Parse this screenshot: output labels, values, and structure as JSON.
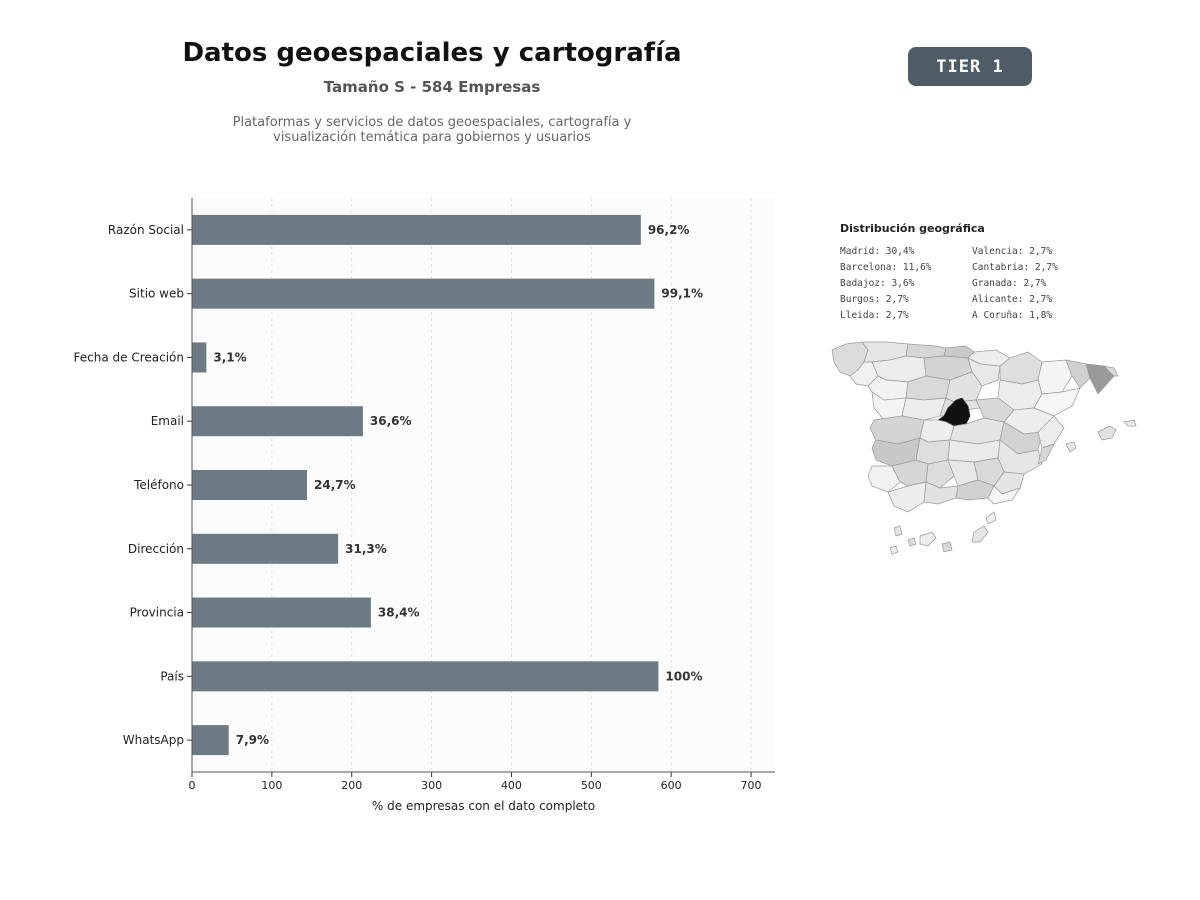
{
  "header": {
    "title": "Datos geoespaciales y cartografía",
    "subtitle": "Tamaño S - 584 Empresas",
    "description": "Plataformas y servicios de datos geoespaciales, cartografía y visualización temática para gobiernos y usuarios",
    "tier_badge": "TIER 1"
  },
  "colors": {
    "bar": "#6e7a83",
    "background": "#fcfcfc",
    "badge": "#4f5b66"
  },
  "chart_data": {
    "type": "bar",
    "orientation": "horizontal",
    "categories": [
      "Razón Social",
      "Sitio web",
      "Fecha de Creación",
      "Email",
      "Teléfono",
      "Dirección",
      "Provincia",
      "País",
      "WhatsApp"
    ],
    "values": [
      562,
      579,
      18,
      214,
      144,
      183,
      224,
      584,
      46
    ],
    "data_labels": [
      "96,2%",
      "99,1%",
      "3,1%",
      "36,6%",
      "24,7%",
      "31,3%",
      "38,4%",
      "100%",
      "7,9%"
    ],
    "xlabel": "% de empresas con el dato completo",
    "ylabel": "",
    "xlim": [
      0,
      730
    ],
    "xticks": [
      0,
      100,
      200,
      300,
      400,
      500,
      600,
      700
    ],
    "grid": "vertical dashed"
  },
  "geo": {
    "title": "Distribución geográfica",
    "entries": [
      "Madrid: 30,4%",
      "Valencia: 2,7%",
      "Barcelona: 11,6%",
      "Cantabria: 2,7%",
      "Badajoz: 3,6%",
      "Granada: 2,7%",
      "Burgos: 2,7%",
      "Alicante: 2,7%",
      "Lleida: 2,7%",
      "A Coruña: 1,8%"
    ]
  }
}
